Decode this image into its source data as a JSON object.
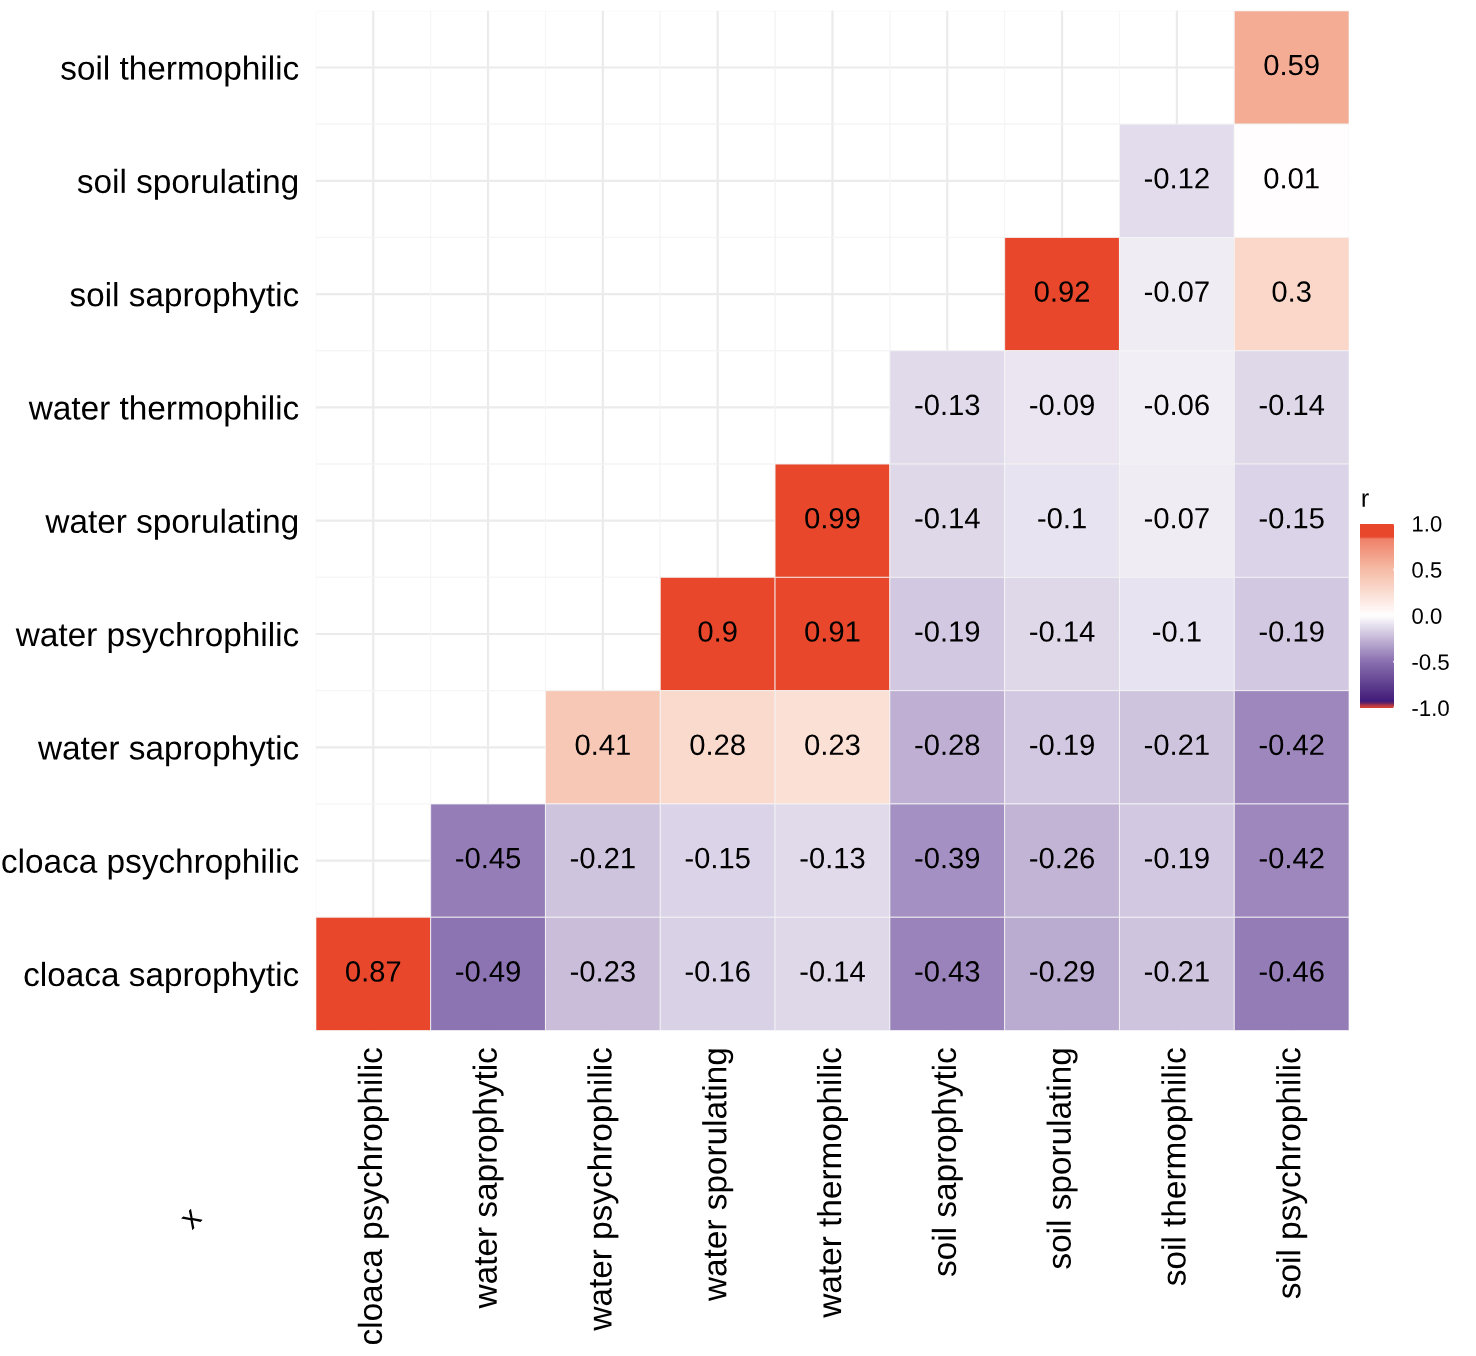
{
  "chart_data": {
    "type": "heatmap",
    "xlabel": "x",
    "clabel": "r",
    "categories": [
      "cloaca psychrophilic",
      "water saprophytic",
      "water psychrophilic",
      "water sporulating",
      "water thermophilic",
      "soil saprophytic",
      "soil sporulating",
      "soil thermophilic",
      "soil psychrophilic"
    ],
    "y_categories": [
      "soil thermophilic",
      "soil sporulating",
      "soil saprophytic",
      "water thermophilic",
      "water sporulating",
      "water psychrophilic",
      "water saprophytic",
      "cloaca psychrophilic",
      "cloaca saprophytic"
    ],
    "cells": [
      [
        null,
        null,
        null,
        null,
        null,
        null,
        null,
        null,
        0.59
      ],
      [
        null,
        null,
        null,
        null,
        null,
        null,
        null,
        -0.12,
        0.01
      ],
      [
        null,
        null,
        null,
        null,
        null,
        null,
        0.92,
        -0.07,
        0.3
      ],
      [
        null,
        null,
        null,
        null,
        null,
        -0.13,
        -0.09,
        -0.06,
        -0.14
      ],
      [
        null,
        null,
        null,
        null,
        0.99,
        -0.14,
        -0.1,
        -0.07,
        -0.15
      ],
      [
        null,
        null,
        null,
        0.9,
        0.91,
        -0.19,
        -0.14,
        -0.1,
        -0.19
      ],
      [
        null,
        null,
        0.41,
        0.28,
        0.23,
        -0.28,
        -0.19,
        -0.21,
        -0.42
      ],
      [
        null,
        -0.45,
        -0.21,
        -0.15,
        -0.13,
        -0.39,
        -0.26,
        -0.19,
        -0.42
      ],
      [
        0.87,
        -0.49,
        -0.23,
        -0.16,
        -0.14,
        -0.43,
        -0.29,
        -0.21,
        -0.46
      ]
    ],
    "data_labels": true,
    "grid": true,
    "clim": [
      -1.0,
      1.0
    ],
    "cticks": [
      {
        "value": -1.0,
        "label": "-1.0"
      },
      {
        "value": -0.5,
        "label": "-0.5"
      },
      {
        "value": 0.0,
        "label": "0.0"
      },
      {
        "value": 0.5,
        "label": "0.5"
      },
      {
        "value": 1.0,
        "label": "1.0"
      }
    ]
  }
}
